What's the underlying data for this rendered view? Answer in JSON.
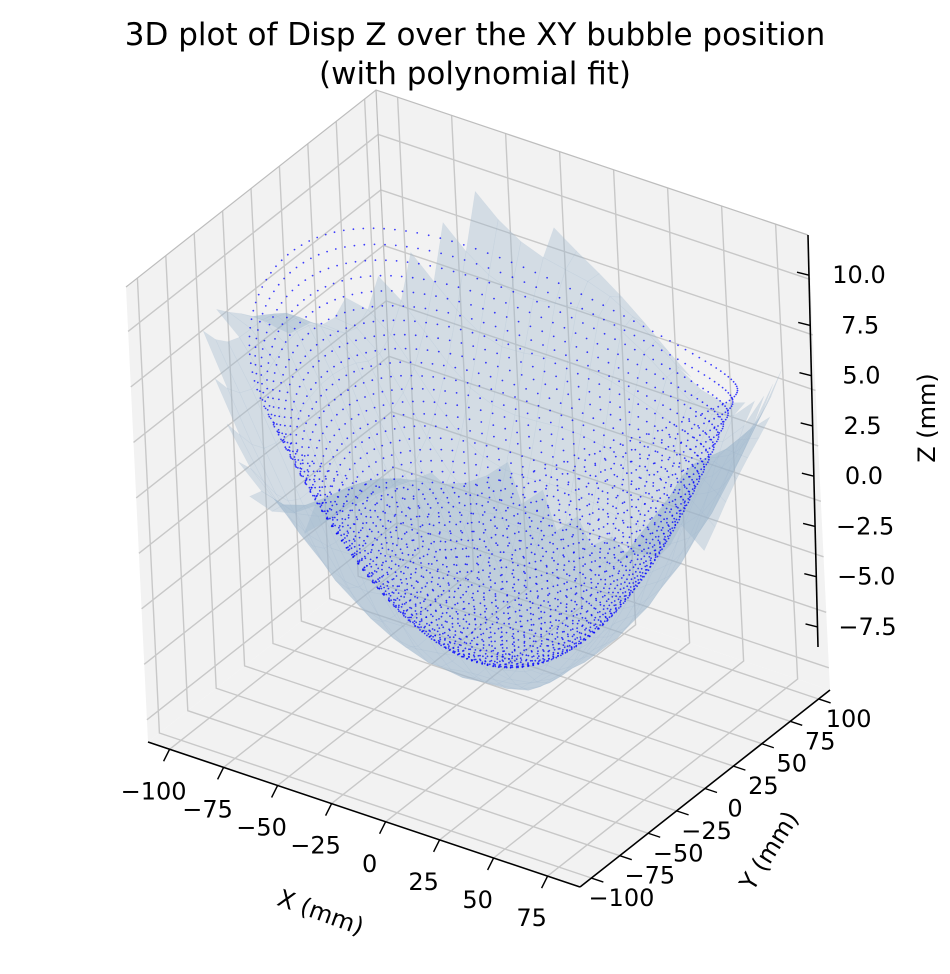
{
  "chart_data": {
    "type": "surface3d",
    "title": "3D plot of Disp Z over the XY bubble position",
    "subtitle": "(with polynomial fit)",
    "xlabel": "X (mm)",
    "ylabel": "Y (mm)",
    "zlabel": "Z (mm)",
    "xlim": [
      -110,
      90
    ],
    "ylim": [
      -110,
      110
    ],
    "zlim": [
      -8.5,
      12
    ],
    "x_ticks": [
      -100,
      -75,
      -50,
      -25,
      0,
      25,
      50,
      75
    ],
    "y_ticks": [
      -100,
      -75,
      -50,
      -25,
      0,
      25,
      50,
      75,
      100
    ],
    "z_ticks": [
      -7.5,
      -5.0,
      -2.5,
      0.0,
      2.5,
      5.0,
      7.5,
      10.0
    ],
    "x_tick_labels": [
      "−100",
      "−75",
      "−50",
      "−25",
      "0",
      "25",
      "50",
      "75"
    ],
    "y_tick_labels": [
      "−100",
      "−75",
      "−50",
      "−25",
      "0",
      "25",
      "50",
      "75",
      "100"
    ],
    "z_tick_labels": [
      "−7.5",
      "−5.0",
      "−2.5",
      "0.0",
      "2.5",
      "5.0",
      "7.5",
      "10.0"
    ],
    "grid": true,
    "series": [
      {
        "kind": "scatter",
        "color": "#0000ff",
        "description_values": {
          "bowl_radius_mm": 100,
          "z_center": -5.5,
          "z_rim": 7.5
        }
      },
      {
        "kind": "surface",
        "color": "#9bb4cc",
        "alpha": 0.55
      }
    ],
    "colors": {
      "scatter": "#0000ff",
      "surface": "#b9cad9",
      "pane": "#f2f2f2",
      "grid": "#c8c8c8"
    }
  }
}
